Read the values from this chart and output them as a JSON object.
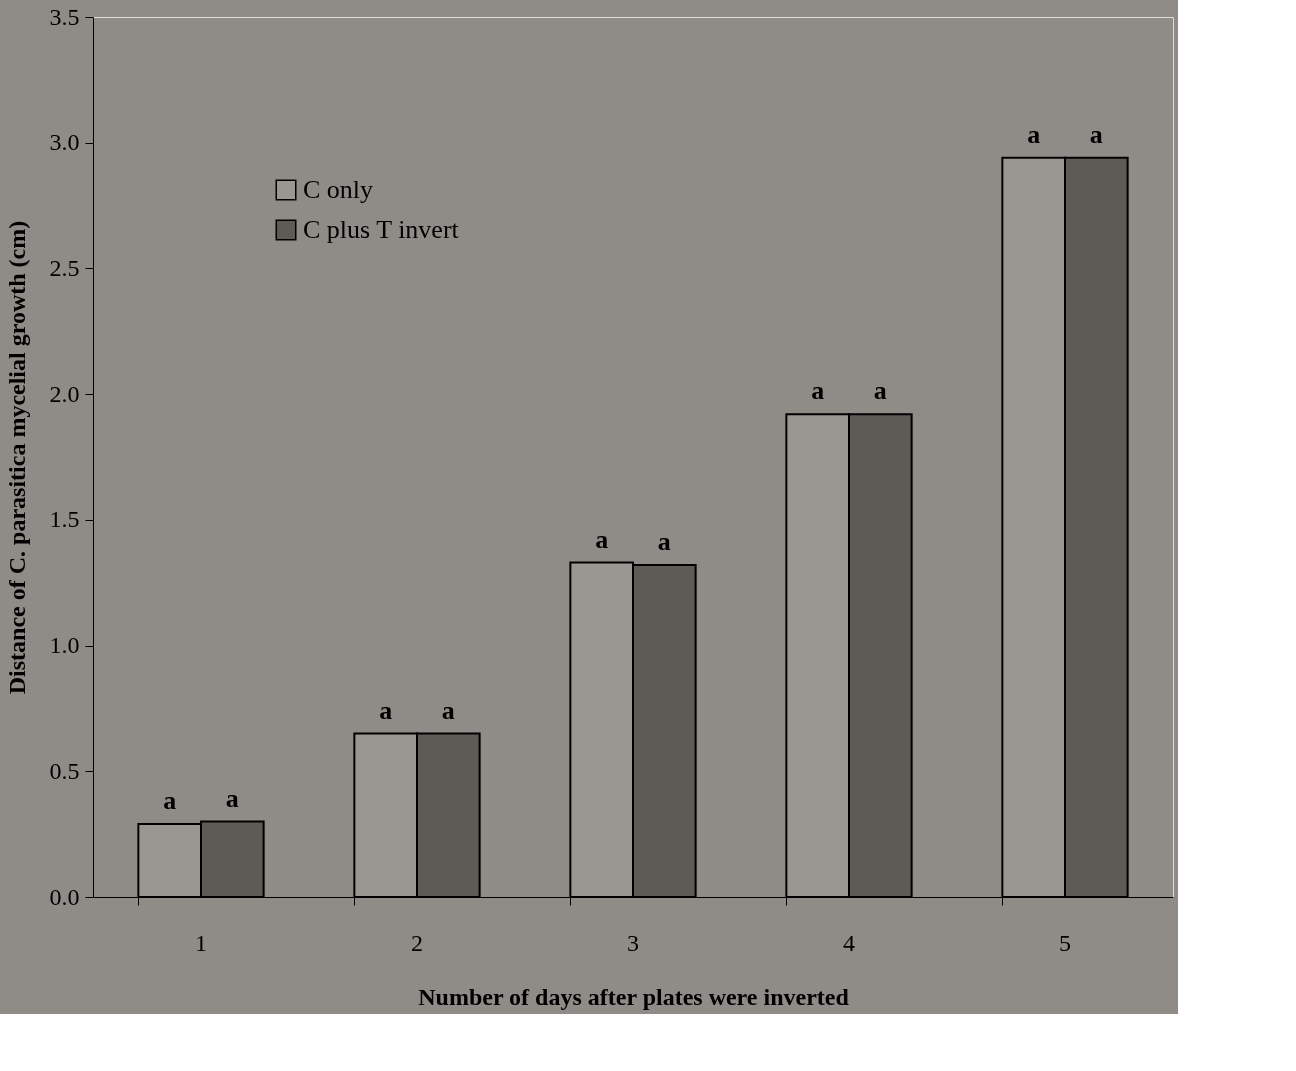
{
  "chart_data": {
    "type": "bar",
    "xlabel": "Number of days after plates were inverted",
    "ylabel": "Distance of C. parasitica  mycelial growth  (cm)",
    "categories": [
      "1",
      "2",
      "3",
      "4",
      "5"
    ],
    "series": [
      {
        "name": "C only",
        "color": "#9a9792",
        "values": [
          0.29,
          0.65,
          1.33,
          1.92,
          2.94
        ]
      },
      {
        "name": "C plus T invert",
        "color": "#5e5b57",
        "values": [
          0.3,
          0.65,
          1.32,
          1.92,
          2.94
        ]
      }
    ],
    "ylim": [
      0,
      3.5
    ],
    "yticks": [
      {
        "value": 0,
        "label": "0.0"
      },
      0.5,
      {
        "value": 1,
        "label": "1.0"
      },
      1.5,
      {
        "value": 2,
        "label": "2.0"
      },
      2.5,
      {
        "value": 3,
        "label": "3.0"
      },
      3.5
    ],
    "grid": false,
    "legend": "top left",
    "annotations": [
      {
        "text": "a",
        "x": "1",
        "y": 0.29
      },
      {
        "text": "a",
        "x": "1",
        "y": 0.3
      },
      {
        "text": "a",
        "x": "2",
        "y": 0.65
      },
      {
        "text": "a",
        "x": "2",
        "y": 0.65
      },
      {
        "text": "a",
        "x": "3",
        "y": 1.33
      },
      {
        "text": "a",
        "x": "3",
        "y": 1.32
      },
      {
        "text": "a",
        "x": "4",
        "y": 1.92
      },
      {
        "text": "a",
        "x": "4",
        "y": 1.92
      },
      {
        "text": "a",
        "x": "5",
        "y": 2.94
      },
      {
        "text": "a",
        "x": "5",
        "y": 2.94
      }
    ]
  }
}
